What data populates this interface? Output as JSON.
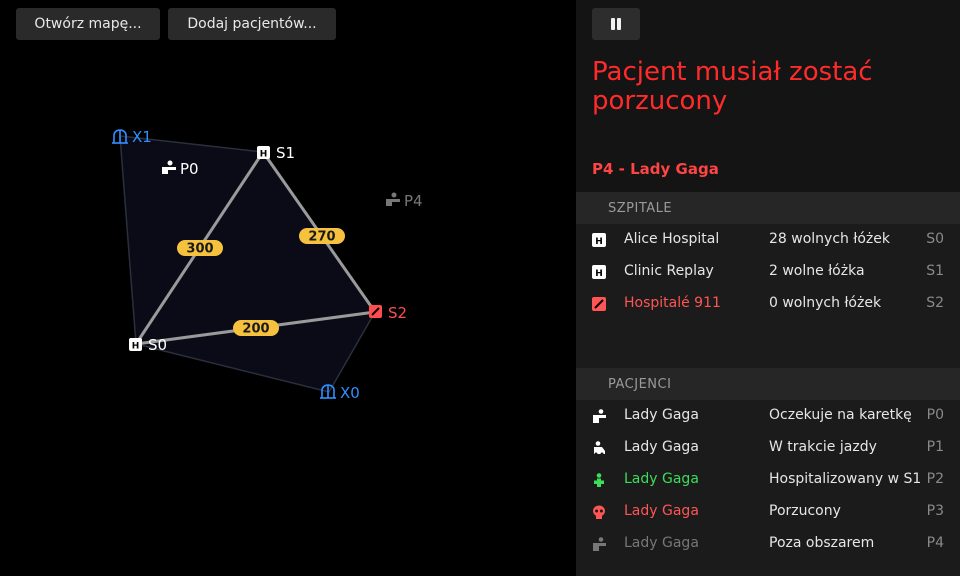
{
  "toolbar": {
    "open_map_label": "Otwórz mapę...",
    "add_patients_label": "Dodaj pacjentów..."
  },
  "map": {
    "nodes": {
      "x1": {
        "label": "X1",
        "color": "#2f8fff"
      },
      "p0": {
        "label": "P0",
        "color": "#ffffff"
      },
      "s1": {
        "label": "S1",
        "color": "#ffffff"
      },
      "p4": {
        "label": "P4",
        "color": "#777777"
      },
      "s2": {
        "label": "S2",
        "color": "#ff4d4d"
      },
      "s0": {
        "label": "S0",
        "color": "#ffffff"
      },
      "x0": {
        "label": "X0",
        "color": "#2f8fff"
      }
    },
    "edges": {
      "s0_s1": "300",
      "s1_s2": "270",
      "s0_s2": "200"
    },
    "weight_color": "#f6c23e",
    "edge_color": "#9a9a9a"
  },
  "side": {
    "alert_title": "Pacjent musiał zostać porzucony",
    "selected_patient": "P4 - Lady Gaga",
    "hospitals_header": "SZPITALE",
    "hospitals": [
      {
        "name": "Alice Hospital",
        "info": "28 wolnych łóżek",
        "code": "S0",
        "icon": "hospital-icon"
      },
      {
        "name": "Clinic Replay",
        "info": "2 wolne łóżka",
        "code": "S1",
        "icon": "hospital-icon"
      },
      {
        "name": "Hospitalé 911",
        "info": "0 wolnych łóżek",
        "code": "S2",
        "icon": "hospital-full-icon"
      }
    ],
    "patients_header": "PACJENCI",
    "patients": [
      {
        "name": "Lady Gaga",
        "info": "Oczekuje na karetkę",
        "code": "P0",
        "icon": "waiting-patient-icon"
      },
      {
        "name": "Lady Gaga",
        "info": "W trakcie jazdy",
        "code": "P1",
        "icon": "ambulance-patient-icon"
      },
      {
        "name": "Lady Gaga",
        "info": "Hospitalizowany w S1",
        "code": "P2",
        "icon": "hospitalized-icon"
      },
      {
        "name": "Lady Gaga",
        "info": "Porzucony",
        "code": "P3",
        "icon": "skull-icon"
      },
      {
        "name": "Lady Gaga",
        "info": "Poza obszarem",
        "code": "P4",
        "icon": "out-of-area-icon"
      }
    ]
  },
  "colors": {
    "alert": "#ff2b2b",
    "green": "#3ddc5a",
    "red": "#ff5555",
    "blue": "#2f8fff"
  }
}
